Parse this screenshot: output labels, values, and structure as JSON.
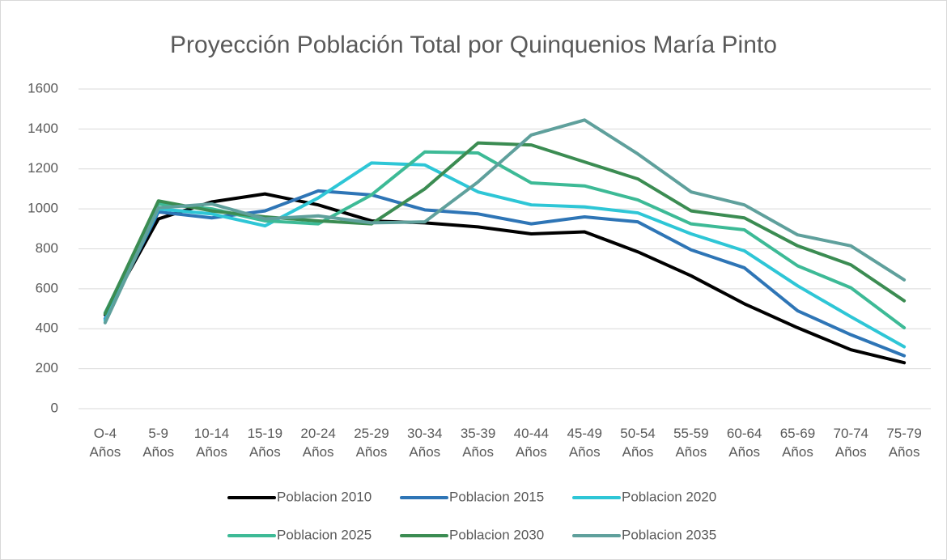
{
  "chart_data": {
    "type": "line",
    "title": "Proyección Población Total por Quinquenios María Pinto",
    "categories": [
      "O-4 Años",
      "5-9 Años",
      "10-14 Años",
      "15-19 Años",
      "20-24 Años",
      "25-29 Años",
      "30-34 Años",
      "35-39 Años",
      "40-44 Años",
      "45-49 Años",
      "50-54 Años",
      "55-59 Años",
      "60-64 Años",
      "65-69 Años",
      "70-74 Años",
      "75-79 Años"
    ],
    "series": [
      {
        "name": "Poblacion 2010",
        "color": "#000000",
        "values": [
          470,
          950,
          1035,
          1075,
          1020,
          940,
          930,
          910,
          875,
          885,
          785,
          665,
          525,
          405,
          295,
          230
        ]
      },
      {
        "name": "Poblacion 2015",
        "color": "#2e75b6",
        "values": [
          450,
          985,
          955,
          990,
          1090,
          1070,
          995,
          975,
          925,
          960,
          935,
          795,
          705,
          490,
          370,
          265
        ]
      },
      {
        "name": "Poblacion 2020",
        "color": "#2ec6d6",
        "values": [
          440,
          1000,
          975,
          915,
          1055,
          1230,
          1220,
          1085,
          1020,
          1010,
          980,
          875,
          790,
          615,
          460,
          310
        ]
      },
      {
        "name": "Poblacion 2025",
        "color": "#3dba96",
        "values": [
          480,
          1025,
          1000,
          940,
          925,
          1070,
          1285,
          1280,
          1130,
          1115,
          1045,
          925,
          895,
          715,
          605,
          405
        ]
      },
      {
        "name": "Poblacion 2030",
        "color": "#3b8c52",
        "values": [
          475,
          1040,
          990,
          960,
          940,
          925,
          1100,
          1330,
          1320,
          1235,
          1150,
          990,
          955,
          815,
          720,
          540
        ]
      },
      {
        "name": "Poblacion 2035",
        "color": "#5fa09c",
        "values": [
          430,
          1005,
          1025,
          950,
          965,
          930,
          935,
          1135,
          1370,
          1445,
          1275,
          1085,
          1020,
          870,
          815,
          645
        ]
      }
    ],
    "ylim": [
      0,
      1600
    ],
    "yticks": [
      0,
      200,
      400,
      600,
      800,
      1000,
      1200,
      1400,
      1600
    ],
    "grid": true
  }
}
